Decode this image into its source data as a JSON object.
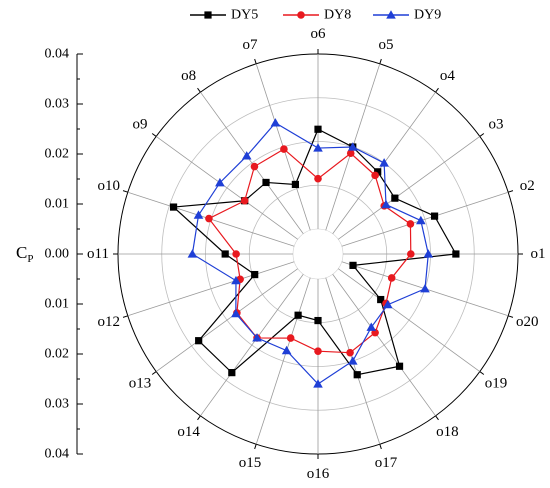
{
  "chart_data": {
    "type": "radar",
    "ylabel": "C",
    "ylabel_sub": "P",
    "rlim": [
      0,
      0.04
    ],
    "grid": true,
    "legend_position": "top",
    "axis_ticks": [
      "0.04",
      "0.03",
      "0.02",
      "0.01",
      "0.00",
      "0.01",
      "0.02",
      "0.03",
      "0.04"
    ],
    "categories": [
      "o1",
      "o2",
      "o3",
      "o4",
      "o5",
      "o6",
      "o7",
      "o8",
      "o9",
      "o10",
      "o11",
      "o12",
      "o13",
      "o14",
      "o15",
      "o16",
      "o17",
      "o18",
      "o19",
      "o20"
    ],
    "series": [
      {
        "name": "DY5",
        "color": "#000000",
        "marker": "square",
        "values": [
          0.0258,
          0.0223,
          0.016,
          0.0175,
          0.02,
          0.0228,
          0.011,
          0.0145,
          0.015,
          0.029,
          0.0155,
          0.0095,
          0.028,
          0.0278,
          0.009,
          0.0095,
          0.0233,
          0.026,
          0.012,
          0.0027
        ]
      },
      {
        "name": "DY8",
        "color": "#e8191f",
        "marker": "circle",
        "values": [
          0.0155,
          0.0165,
          0.013,
          0.0165,
          0.0185,
          0.0115,
          0.0195,
          0.019,
          0.015,
          0.0205,
          0.013,
          0.013,
          0.0172,
          0.018,
          0.0145,
          0.0165,
          0.018,
          0.0165,
          0.0135,
          0.012
        ]
      },
      {
        "name": "DY9",
        "color": "#1f3fd6",
        "marker": "triangle",
        "values": [
          0.0195,
          0.019,
          0.0135,
          0.02,
          0.02,
          0.0185,
          0.0258,
          0.022,
          0.022,
          0.023,
          0.023,
          0.014,
          0.0175,
          0.018,
          0.0175,
          0.024,
          0.02,
          0.015,
          0.014,
          0.02
        ]
      }
    ]
  }
}
